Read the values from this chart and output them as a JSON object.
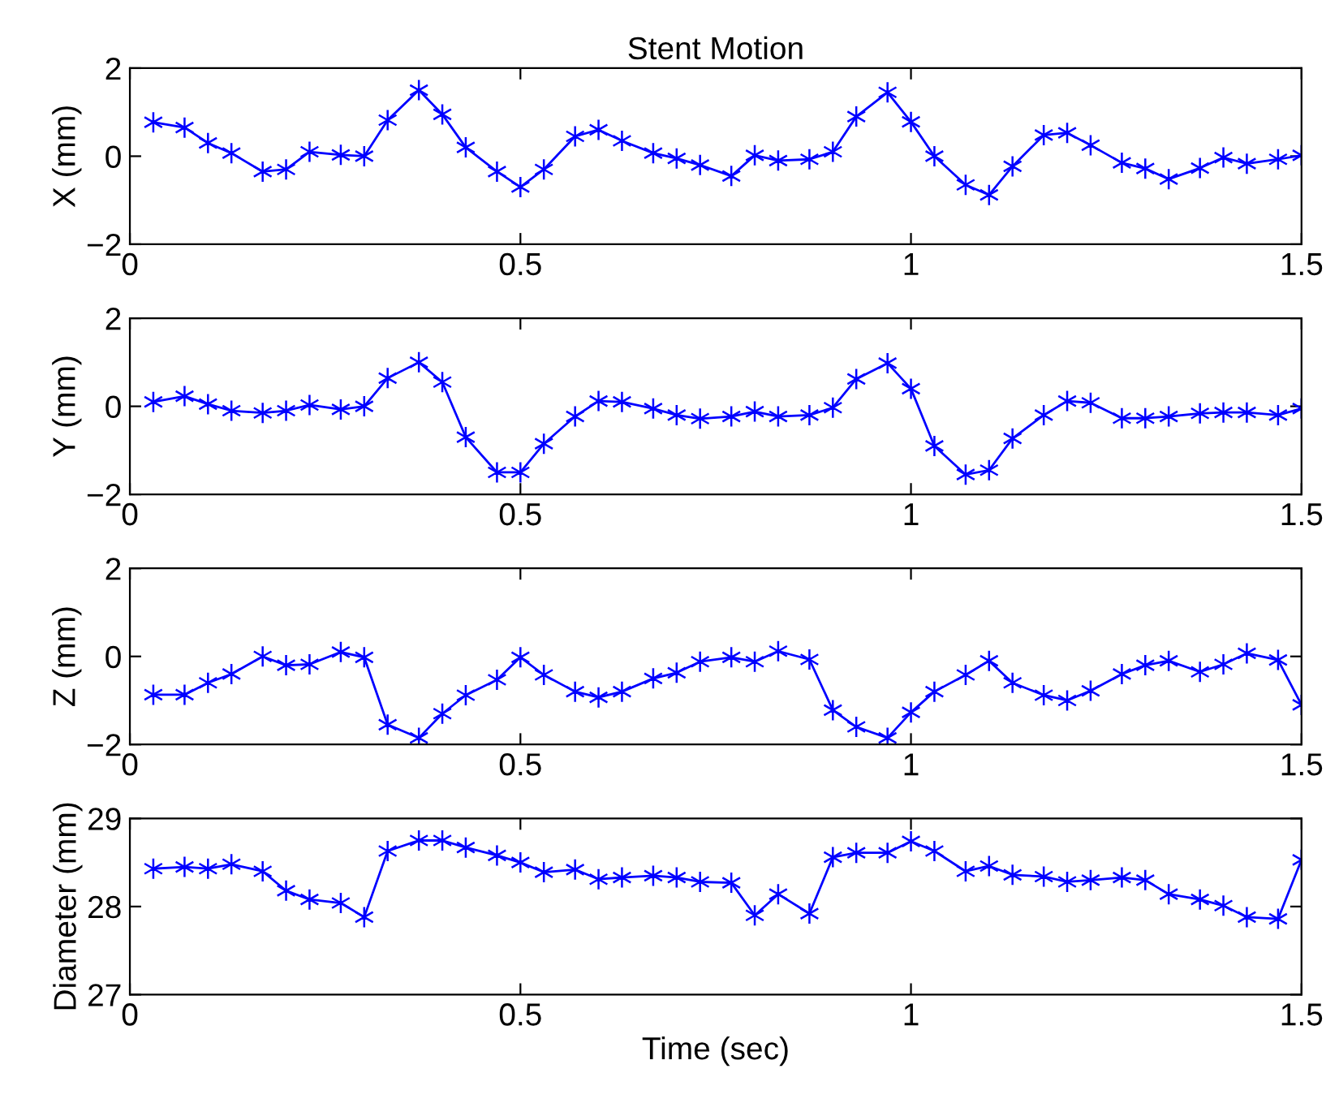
{
  "chart_data": [
    {
      "type": "line",
      "title": "Stent Motion",
      "ylabel": "X (mm)",
      "xlim": [
        0,
        1.5
      ],
      "xticks": [
        0,
        0.5,
        1,
        1.5
      ],
      "ylim": [
        -2,
        2
      ],
      "yticks": [
        -2,
        0,
        2
      ],
      "grid": false,
      "marker": "cross",
      "line_style": "solid",
      "x": [
        0.03,
        0.07,
        0.1,
        0.13,
        0.17,
        0.2,
        0.23,
        0.27,
        0.3,
        0.33,
        0.37,
        0.4,
        0.43,
        0.47,
        0.5,
        0.53,
        0.57,
        0.6,
        0.63,
        0.67,
        0.7,
        0.73,
        0.77,
        0.8,
        0.83,
        0.87,
        0.9,
        0.93,
        0.97,
        1,
        1.03,
        1.07,
        1.1,
        1.13,
        1.17,
        1.2,
        1.23,
        1.27,
        1.3,
        1.33,
        1.37,
        1.4,
        1.43,
        1.47,
        1.5
      ],
      "series": [
        {
          "color": "#0000ff",
          "values": [
            0.77,
            0.65,
            0.3,
            0.07,
            -0.35,
            -0.3,
            0.1,
            0.03,
            0,
            0.82,
            1.5,
            0.95,
            0.2,
            -0.35,
            -0.7,
            -0.3,
            0.45,
            0.6,
            0.35,
            0.07,
            -0.05,
            -0.2,
            -0.45,
            0.02,
            -0.1,
            -0.07,
            0.1,
            0.9,
            1.45,
            0.78,
            0,
            -0.65,
            -0.88,
            -0.23,
            0.48,
            0.53,
            0.25,
            -0.15,
            -0.28,
            -0.52,
            -0.27,
            -0.03,
            -0.17,
            -0.07,
            0.02
          ]
        }
      ]
    },
    {
      "type": "line",
      "ylabel": "Y (mm)",
      "xlim": [
        0,
        1.5
      ],
      "xticks": [
        0,
        0.5,
        1,
        1.5
      ],
      "ylim": [
        -2,
        2
      ],
      "yticks": [
        -2,
        0,
        2
      ],
      "grid": false,
      "marker": "cross",
      "line_style": "solid",
      "x": [
        0.03,
        0.07,
        0.1,
        0.13,
        0.17,
        0.2,
        0.23,
        0.27,
        0.3,
        0.33,
        0.37,
        0.4,
        0.43,
        0.47,
        0.5,
        0.53,
        0.57,
        0.6,
        0.63,
        0.67,
        0.7,
        0.73,
        0.77,
        0.8,
        0.83,
        0.87,
        0.9,
        0.93,
        0.97,
        1,
        1.03,
        1.07,
        1.1,
        1.13,
        1.17,
        1.2,
        1.23,
        1.27,
        1.3,
        1.33,
        1.37,
        1.4,
        1.43,
        1.47,
        1.5
      ],
      "series": [
        {
          "color": "#0000ff",
          "values": [
            0.1,
            0.23,
            0.05,
            -0.1,
            -0.15,
            -0.1,
            0.03,
            -0.07,
            0,
            0.64,
            1.0,
            0.55,
            -0.7,
            -1.5,
            -1.5,
            -0.85,
            -0.23,
            0.12,
            0.1,
            -0.05,
            -0.2,
            -0.28,
            -0.23,
            -0.12,
            -0.23,
            -0.2,
            -0.03,
            0.62,
            0.98,
            0.4,
            -0.9,
            -1.55,
            -1.45,
            -0.73,
            -0.2,
            0.12,
            0.08,
            -0.27,
            -0.27,
            -0.23,
            -0.16,
            -0.14,
            -0.14,
            -0.2,
            -0.05
          ]
        }
      ]
    },
    {
      "type": "line",
      "ylabel": "Z (mm)",
      "xlim": [
        0,
        1.5
      ],
      "xticks": [
        0,
        0.5,
        1,
        1.5
      ],
      "ylim": [
        -2,
        2
      ],
      "yticks": [
        -2,
        0,
        2
      ],
      "grid": false,
      "marker": "cross",
      "line_style": "solid",
      "x": [
        0.03,
        0.07,
        0.1,
        0.13,
        0.17,
        0.2,
        0.23,
        0.27,
        0.3,
        0.33,
        0.37,
        0.4,
        0.43,
        0.47,
        0.5,
        0.53,
        0.57,
        0.6,
        0.63,
        0.67,
        0.7,
        0.73,
        0.77,
        0.8,
        0.83,
        0.87,
        0.9,
        0.93,
        0.97,
        1,
        1.03,
        1.07,
        1.1,
        1.13,
        1.17,
        1.2,
        1.23,
        1.27,
        1.3,
        1.33,
        1.37,
        1.4,
        1.43,
        1.47,
        1.5
      ],
      "series": [
        {
          "color": "#0000ff",
          "values": [
            -0.87,
            -0.87,
            -0.6,
            -0.4,
            0,
            -0.2,
            -0.18,
            0.1,
            -0.02,
            -1.55,
            -1.85,
            -1.3,
            -0.88,
            -0.53,
            -0.02,
            -0.42,
            -0.8,
            -0.93,
            -0.8,
            -0.5,
            -0.37,
            -0.12,
            -0.02,
            -0.12,
            0.12,
            -0.07,
            -1.22,
            -1.6,
            -1.85,
            -1.27,
            -0.8,
            -0.42,
            -0.1,
            -0.6,
            -0.88,
            -1.0,
            -0.78,
            -0.4,
            -0.2,
            -0.1,
            -0.35,
            -0.18,
            0.07,
            -0.08,
            -1.1
          ]
        }
      ]
    },
    {
      "type": "line",
      "ylabel": "Diameter (mm)",
      "xlabel": "Time (sec)",
      "xlim": [
        0,
        1.5
      ],
      "xticks": [
        0,
        0.5,
        1,
        1.5
      ],
      "ylim": [
        27,
        29
      ],
      "yticks": [
        27,
        28,
        29
      ],
      "grid": false,
      "marker": "cross",
      "line_style": "solid",
      "x": [
        0.03,
        0.07,
        0.1,
        0.13,
        0.17,
        0.2,
        0.23,
        0.27,
        0.3,
        0.33,
        0.37,
        0.4,
        0.43,
        0.47,
        0.5,
        0.53,
        0.57,
        0.6,
        0.63,
        0.67,
        0.7,
        0.73,
        0.77,
        0.8,
        0.83,
        0.87,
        0.9,
        0.93,
        0.97,
        1,
        1.03,
        1.07,
        1.1,
        1.13,
        1.17,
        1.2,
        1.23,
        1.27,
        1.3,
        1.33,
        1.37,
        1.4,
        1.43,
        1.47,
        1.5
      ],
      "series": [
        {
          "color": "#0000ff",
          "values": [
            28.43,
            28.45,
            28.43,
            28.48,
            28.4,
            28.18,
            28.08,
            28.04,
            27.88,
            28.63,
            28.75,
            28.75,
            28.67,
            28.58,
            28.5,
            28.39,
            28.42,
            28.31,
            28.33,
            28.35,
            28.33,
            28.28,
            28.27,
            27.9,
            28.14,
            27.92,
            28.56,
            28.61,
            28.61,
            28.74,
            28.63,
            28.4,
            28.46,
            28.36,
            28.34,
            28.28,
            28.3,
            28.33,
            28.3,
            28.14,
            28.08,
            28.01,
            27.88,
            27.86,
            28.53
          ]
        }
      ]
    }
  ]
}
